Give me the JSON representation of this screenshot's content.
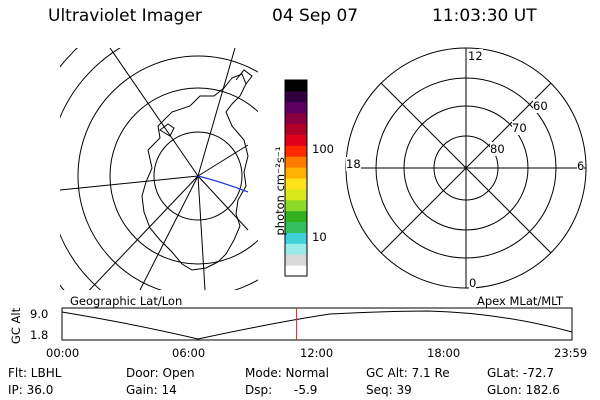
{
  "header": {
    "instrument": "Ultraviolet Imager",
    "date": "04 Sep 07",
    "time": "11:03:30 UT"
  },
  "colorbar": {
    "unit_label": "photon cm⁻²s⁻¹",
    "ticks": [
      "100",
      "10"
    ],
    "colors": [
      "#ffffff",
      "#d8d8d8",
      "#9aeaea",
      "#3fd0d8",
      "#35c060",
      "#33b020",
      "#8ed82a",
      "#d8e81a",
      "#ffe21a",
      "#ffb000",
      "#ff7a00",
      "#ff2a00",
      "#e0001a",
      "#b00028",
      "#8a0040",
      "#5a0060",
      "#300040",
      "#000000"
    ]
  },
  "left_map": {
    "label": "Geographic Lat/Lon",
    "footprint_color": "#1f3fe0"
  },
  "right_polar": {
    "label": "Apex MLat/MLT",
    "mlt_labels": {
      "top": "12",
      "right": "6",
      "bottom": "0",
      "left": "18"
    },
    "lat_labels": [
      "60",
      "70",
      "80"
    ]
  },
  "orbit_plot": {
    "ylabel": "GC Alt",
    "y_ticks": [
      "9.0",
      "1.8"
    ],
    "x_ticks": [
      "00:00",
      "06:00",
      "12:00",
      "18:00",
      "23:59"
    ],
    "marker_color": "#e02020",
    "current_time_fraction": 0.46
  },
  "info": {
    "flt": "Flt: LBHL",
    "ip": "IP: 36.0",
    "door": "Door: Open",
    "gain": "Gain: 14",
    "mode": "Mode: Normal",
    "dsp_label": "Dsp:",
    "dsp_value": "-5.9",
    "gc_alt": "GC Alt: 7.1 Re",
    "seq": "Seq: 39",
    "glat": "GLat: -72.7",
    "glon": "GLon: 182.6"
  }
}
